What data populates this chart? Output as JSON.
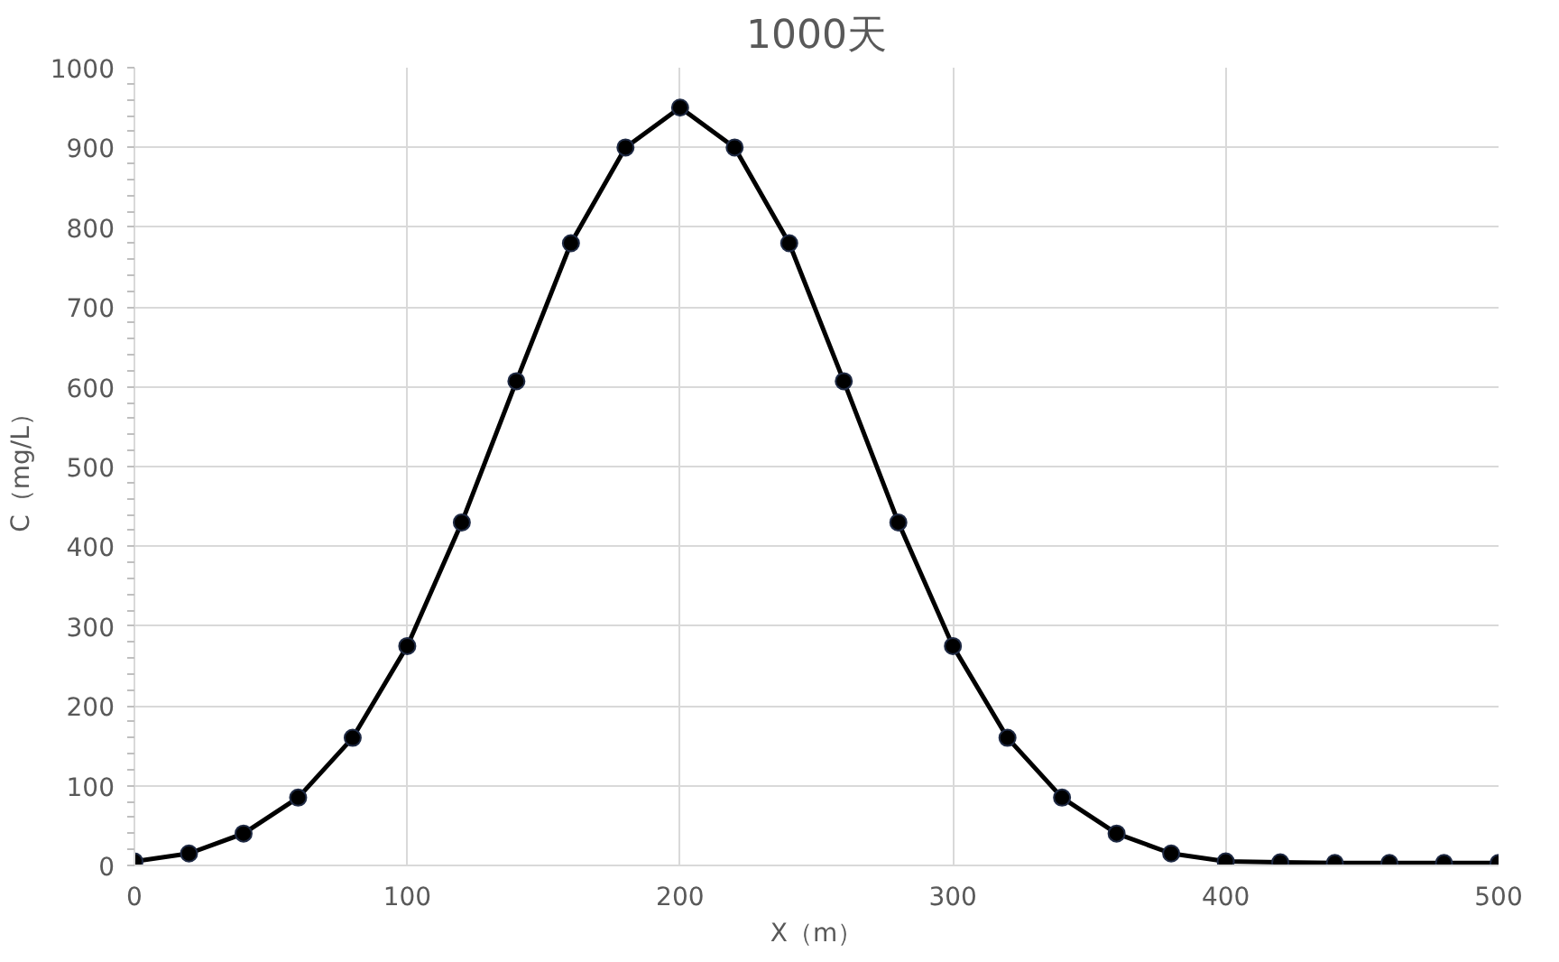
{
  "chart_data": {
    "type": "line",
    "title": "1000天",
    "xlabel": "X（m）",
    "ylabel": "C（mg/L）",
    "x": [
      0,
      20,
      40,
      60,
      80,
      100,
      120,
      140,
      160,
      180,
      200,
      220,
      240,
      260,
      280,
      300,
      320,
      340,
      360,
      380,
      400,
      420,
      440,
      460,
      480,
      500
    ],
    "series": [
      {
        "color": "#000000",
        "values": [
          5,
          15,
          40,
          85,
          160,
          275,
          430,
          607,
          780,
          900,
          950,
          900,
          780,
          607,
          430,
          275,
          160,
          85,
          40,
          15,
          5,
          4,
          3,
          3,
          3,
          3
        ]
      }
    ],
    "xlim": [
      0,
      500
    ],
    "xticks": [
      0,
      100,
      200,
      300,
      400,
      500
    ],
    "ylim": [
      0,
      1000
    ],
    "yticks": [
      0,
      100,
      200,
      300,
      400,
      500,
      600,
      700,
      800,
      900,
      1000
    ],
    "grid": true,
    "marker": "circle",
    "line_style": "solid"
  }
}
